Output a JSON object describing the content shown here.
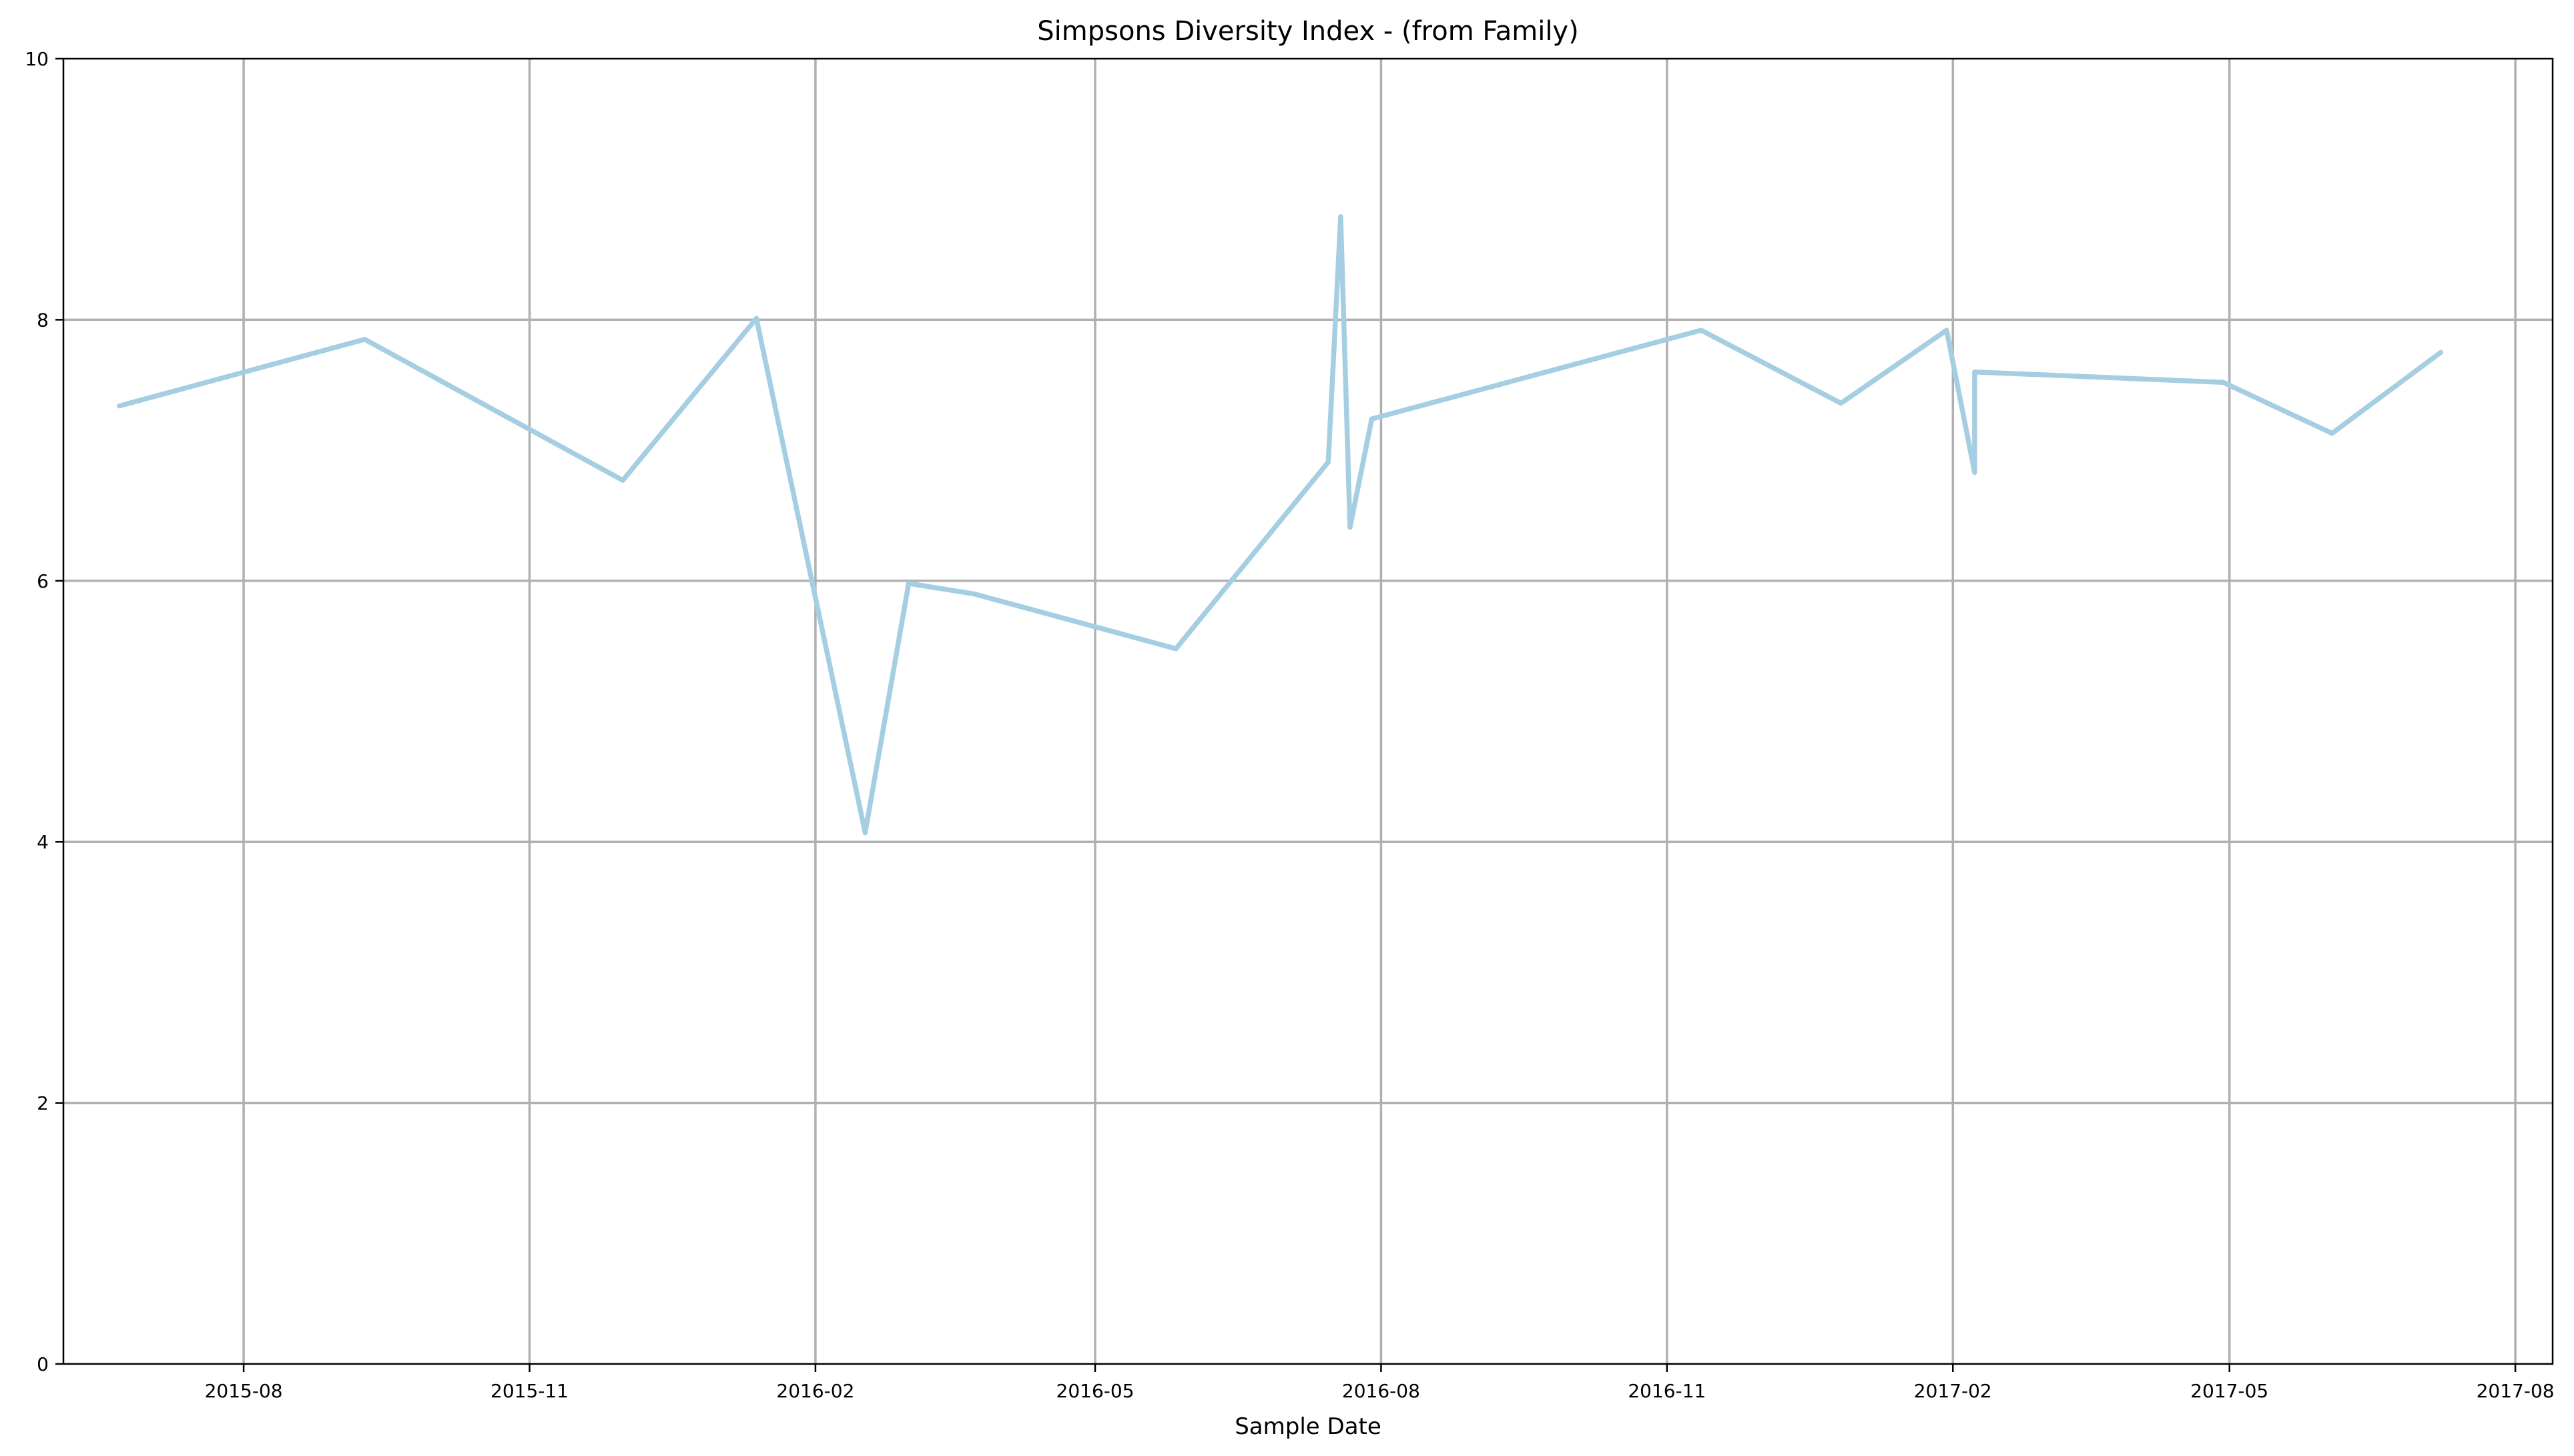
{
  "chart_data": {
    "type": "line",
    "title": "Simpsons Diversity Index - (from Family)",
    "xlabel": "Sample Date",
    "ylabel": "",
    "ylim": [
      0,
      10
    ],
    "xlim": [
      "2015-06-04",
      "2017-08-13"
    ],
    "yticks": [
      0,
      2,
      4,
      6,
      8,
      10
    ],
    "xticks": [
      "2015-08",
      "2015-11",
      "2016-02",
      "2016-05",
      "2016-08",
      "2016-11",
      "2017-02",
      "2017-05",
      "2017-08"
    ],
    "grid": true,
    "legend": "none",
    "series": [
      {
        "color": "#a6cee3",
        "points": [
          {
            "x": "2015-06-22",
            "y": 7.34
          },
          {
            "x": "2015-09-09",
            "y": 7.85
          },
          {
            "x": "2015-12-01",
            "y": 6.77
          },
          {
            "x": "2016-01-13",
            "y": 8.01
          },
          {
            "x": "2016-02-17",
            "y": 4.07
          },
          {
            "x": "2016-03-02",
            "y": 5.98
          },
          {
            "x": "2016-03-23",
            "y": 5.9
          },
          {
            "x": "2016-05-27",
            "y": 5.48
          },
          {
            "x": "2016-07-15",
            "y": 6.91
          },
          {
            "x": "2016-07-19",
            "y": 8.79
          },
          {
            "x": "2016-07-22",
            "y": 6.41
          },
          {
            "x": "2016-07-29",
            "y": 7.24
          },
          {
            "x": "2016-11-12",
            "y": 7.92
          },
          {
            "x": "2016-12-27",
            "y": 7.36
          },
          {
            "x": "2017-01-30",
            "y": 7.92
          },
          {
            "x": "2017-02-08",
            "y": 6.83
          },
          {
            "x": "2017-02-08",
            "y": 7.6
          },
          {
            "x": "2017-04-29",
            "y": 7.52
          },
          {
            "x": "2017-06-03",
            "y": 7.13
          },
          {
            "x": "2017-07-08",
            "y": 7.75
          }
        ]
      }
    ]
  }
}
